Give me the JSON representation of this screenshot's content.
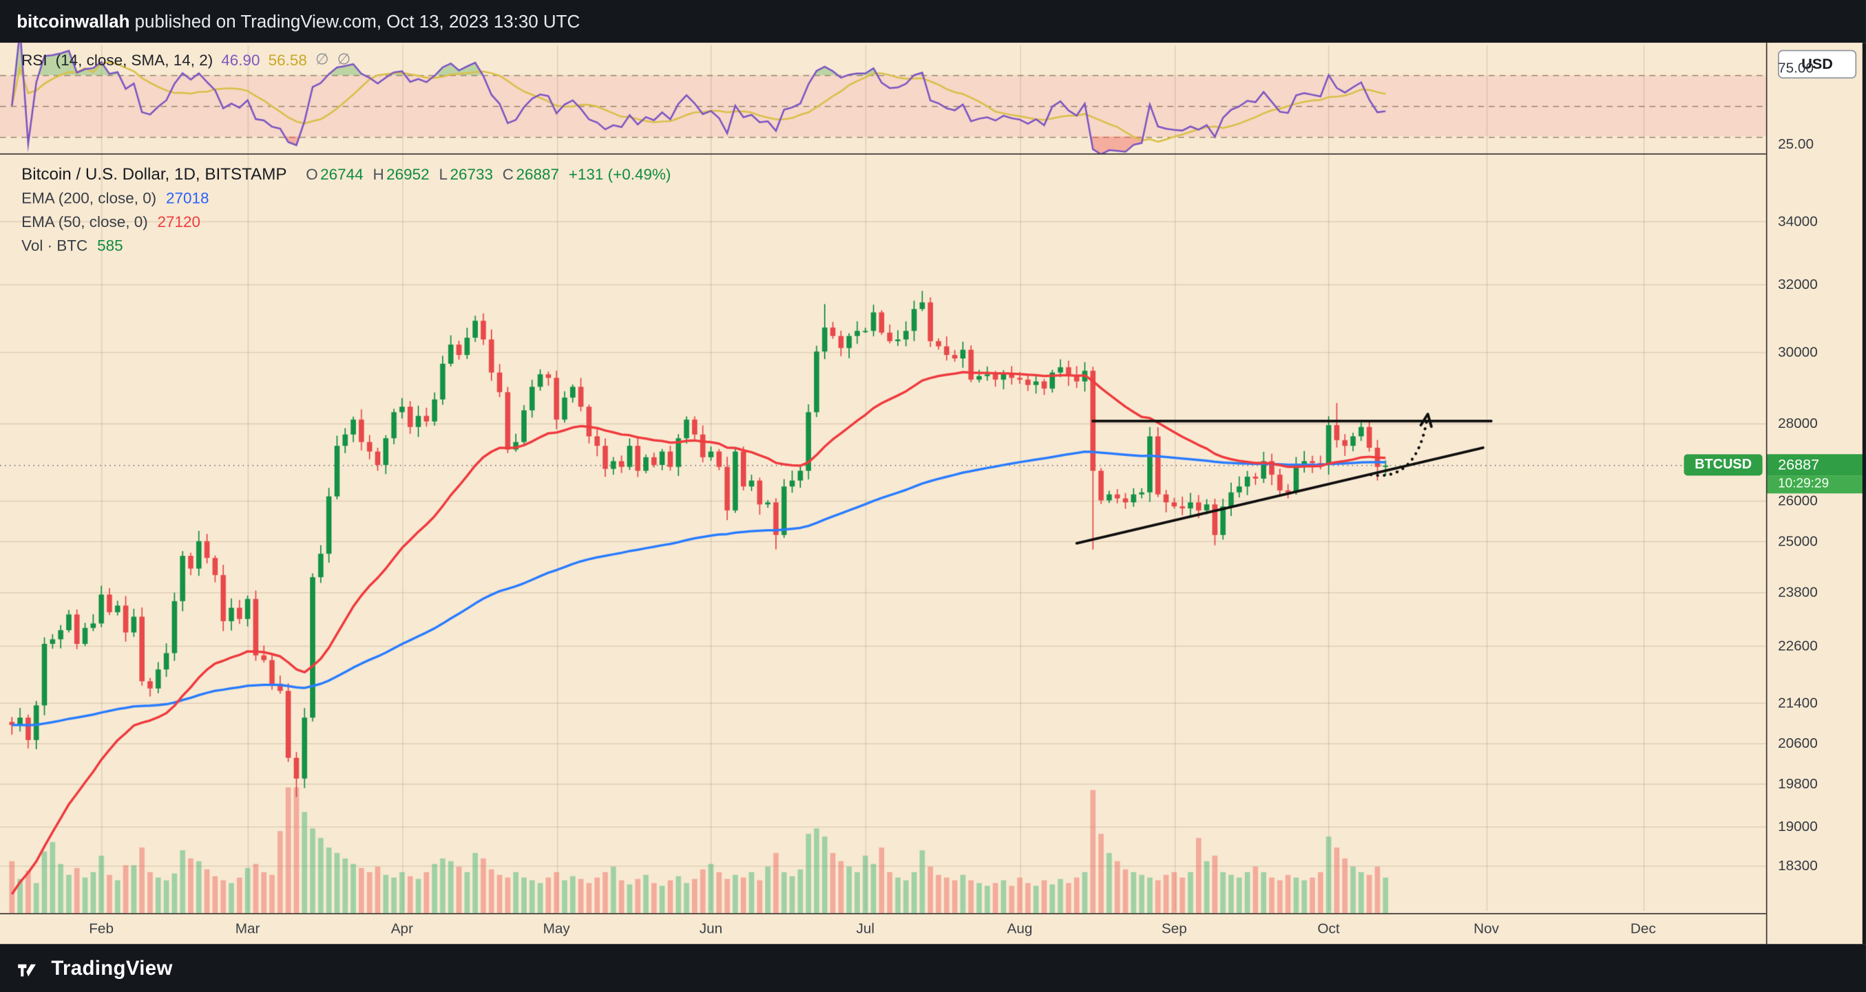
{
  "publish_bar": {
    "author": "bitcoinwallah",
    "text": " published on TradingView.com, Oct 13, 2023 13:30 UTC"
  },
  "rsi_pane": {
    "title": "RSI",
    "params": "(14, close, SMA, 14, 2)",
    "rsi_value": "46.90",
    "sma_value": "56.58",
    "hide_icon": "∅",
    "rsi_color": "#7e57c2",
    "sma_color": "#c9a727"
  },
  "main_pane": {
    "symbol_title": "Bitcoin / U.S. Dollar, 1D, BITSTAMP",
    "ohlc_color": "#0d8b40",
    "ohlc": {
      "o_label": "O",
      "o_value": "26744",
      "h_label": "H",
      "h_value": "26952",
      "l_label": "L",
      "l_value": "26733",
      "c_label": "C",
      "c_value": "26887",
      "change": "+131 (+0.49%)"
    },
    "indicators": [
      {
        "label": "EMA (200, close, 0)",
        "value": "27018",
        "color": "#2962ff"
      },
      {
        "label": "EMA (50, close, 0)",
        "value": "27120",
        "color": "#ef3b3f"
      },
      {
        "label": "Vol · BTC",
        "value": "585",
        "color": "#0d8b40"
      }
    ],
    "price_label": {
      "symbol": "BTCUSD",
      "price": "26887",
      "countdown": "10:29:29",
      "color": "#2f9e44",
      "countdown_color": "#43ac4f"
    }
  },
  "axis": {
    "currency_button": "USD",
    "rsi_ticks": [
      "75.00",
      "25.00"
    ]
  },
  "footer": {
    "brand": "TradingView"
  },
  "chart_data": {
    "type": "candlestick",
    "symbol": "BTCUSD",
    "exchange": "BITSTAMP",
    "timeframe": "1D",
    "price_scale": "logarithmic",
    "start_date": "2023-01-14",
    "bar_days": 1.6,
    "current_price": 26887,
    "current_ohlc": {
      "open": 26744,
      "high": 26952,
      "low": 26733,
      "close": 26887,
      "change": 131,
      "change_pct": 0.49
    },
    "volume_btc": 585,
    "ema": [
      {
        "period": 200,
        "value": 27018,
        "color": "#2a7dff"
      },
      {
        "period": 50,
        "value": 27120,
        "color": "#ef3b3f"
      }
    ],
    "rsi": {
      "period_days": 14,
      "sma_days": 14,
      "value": 46.9,
      "sma_value": 56.58,
      "upper": 70,
      "mid": 50,
      "lower": 30,
      "axis": [
        75,
        25
      ]
    },
    "price_ticks": [
      34000,
      32000,
      30000,
      28000,
      26000,
      25000,
      23800,
      22600,
      21400,
      20600,
      19800,
      19000,
      18300
    ],
    "months": [
      "Feb",
      "Mar",
      "Apr",
      "May",
      "Jun",
      "Jul",
      "Aug",
      "Sep",
      "Oct",
      "Nov",
      "Dec"
    ],
    "month_start_bars": [
      11,
      29,
      48,
      67,
      86,
      105,
      124,
      143,
      162,
      181.4,
      200.7
    ],
    "closes": [
      20950,
      21100,
      20650,
      21350,
      22650,
      22750,
      22950,
      23300,
      22650,
      23000,
      23100,
      23750,
      23350,
      23500,
      22900,
      23250,
      21850,
      21700,
      22100,
      22450,
      23600,
      24650,
      24350,
      25000,
      24600,
      24200,
      23150,
      23450,
      23200,
      23650,
      22400,
      22300,
      21800,
      21650,
      20300,
      19900,
      21100,
      24150,
      24700,
      26100,
      27400,
      27700,
      28100,
      27500,
      27250,
      26900,
      27600,
      28300,
      28450,
      27900,
      28200,
      28050,
      28650,
      29650,
      30200,
      29900,
      30400,
      30900,
      30350,
      29400,
      28850,
      27300,
      27500,
      28350,
      29000,
      29350,
      29250,
      28100,
      28700,
      29000,
      28450,
      27650,
      27400,
      26800,
      27000,
      26850,
      27400,
      26750,
      27100,
      26900,
      27250,
      26850,
      27600,
      28100,
      27700,
      27100,
      27250,
      26850,
      25750,
      27250,
      26350,
      26500,
      25900,
      25950,
      25150,
      26350,
      26500,
      26750,
      28300,
      30000,
      30700,
      30450,
      30100,
      30450,
      30600,
      30600,
      31150,
      30550,
      30300,
      30350,
      30600,
      31250,
      31450,
      30300,
      30150,
      29900,
      29800,
      30050,
      29200,
      29300,
      29350,
      29200,
      29350,
      29250,
      29200,
      29050,
      29150,
      28950,
      29400,
      29550,
      29300,
      29150,
      29450,
      26750,
      26000,
      26150,
      26050,
      25950,
      26150,
      26200,
      27650,
      26150,
      25950,
      25850,
      25800,
      25950,
      25750,
      25900,
      25150,
      25850,
      26200,
      26350,
      26600,
      26550,
      27000,
      26650,
      26250,
      26200,
      26900,
      27000,
      26950,
      26900,
      27950,
      27550,
      27400,
      27650,
      27900,
      27350,
      26850,
      26887
    ],
    "volumes": [
      38,
      25,
      31,
      22,
      45,
      52,
      36,
      28,
      33,
      26,
      30,
      42,
      28,
      24,
      35,
      35,
      48,
      30,
      26,
      24,
      29,
      46,
      40,
      38,
      32,
      27,
      24,
      22,
      26,
      33,
      36,
      30,
      28,
      60,
      92,
      92,
      74,
      62,
      55,
      48,
      44,
      40,
      36,
      33,
      30,
      34,
      28,
      26,
      30,
      27,
      25,
      30,
      36,
      40,
      38,
      34,
      30,
      44,
      40,
      32,
      28,
      26,
      30,
      26,
      24,
      22,
      26,
      30,
      24,
      27,
      25,
      22,
      26,
      30,
      34,
      24,
      21,
      25,
      28,
      22,
      20,
      24,
      27,
      22,
      25,
      32,
      36,
      30,
      25,
      28,
      26,
      30,
      24,
      34,
      44,
      30,
      27,
      32,
      58,
      62,
      56,
      44,
      38,
      34,
      30,
      42,
      36,
      48,
      30,
      26,
      24,
      30,
      46,
      34,
      28,
      26,
      24,
      28,
      24,
      22,
      20,
      22,
      24,
      20,
      26,
      22,
      20,
      24,
      21,
      25,
      22,
      26,
      30,
      90,
      58,
      44,
      38,
      32,
      30,
      28,
      26,
      24,
      28,
      30,
      26,
      30,
      55,
      38,
      42,
      30,
      28,
      26,
      30,
      34,
      30,
      26,
      24,
      28,
      26,
      24,
      26,
      30,
      56,
      48,
      40,
      34,
      30,
      28,
      34,
      26
    ],
    "wick_overrides": {
      "23": [
        25250,
        null
      ],
      "35": [
        null,
        19550
      ],
      "57": [
        31050,
        null
      ],
      "94": [
        null,
        24800
      ],
      "100": [
        31400,
        null
      ],
      "112": [
        31800,
        null
      ],
      "133": [
        null,
        24800
      ],
      "148": [
        null,
        24900
      ],
      "163": [
        28550,
        null
      ],
      "168": [
        null,
        26500
      ]
    },
    "drawings": {
      "resistance_line": {
        "bar1": 133,
        "price1": 28060,
        "bar2": 182,
        "price2": 28060
      },
      "support_line": {
        "bar1": 131,
        "price1": 24950,
        "bar2": 181,
        "price2": 27350
      },
      "breakout_arrow": {
        "from_bar": 167.2,
        "from_price": 26650,
        "ctrl_bar": 173,
        "ctrl_price": 26450,
        "to_bar": 174.2,
        "to_price": 28250
      }
    },
    "colors": {
      "up": "#149246",
      "down": "#e8494a",
      "vol_up": "rgba(70,185,120,0.5)",
      "vol_down": "rgba(238,110,100,0.5)",
      "background": "#f8e9d2",
      "band": "rgba(233,30,99,0.09)"
    }
  }
}
